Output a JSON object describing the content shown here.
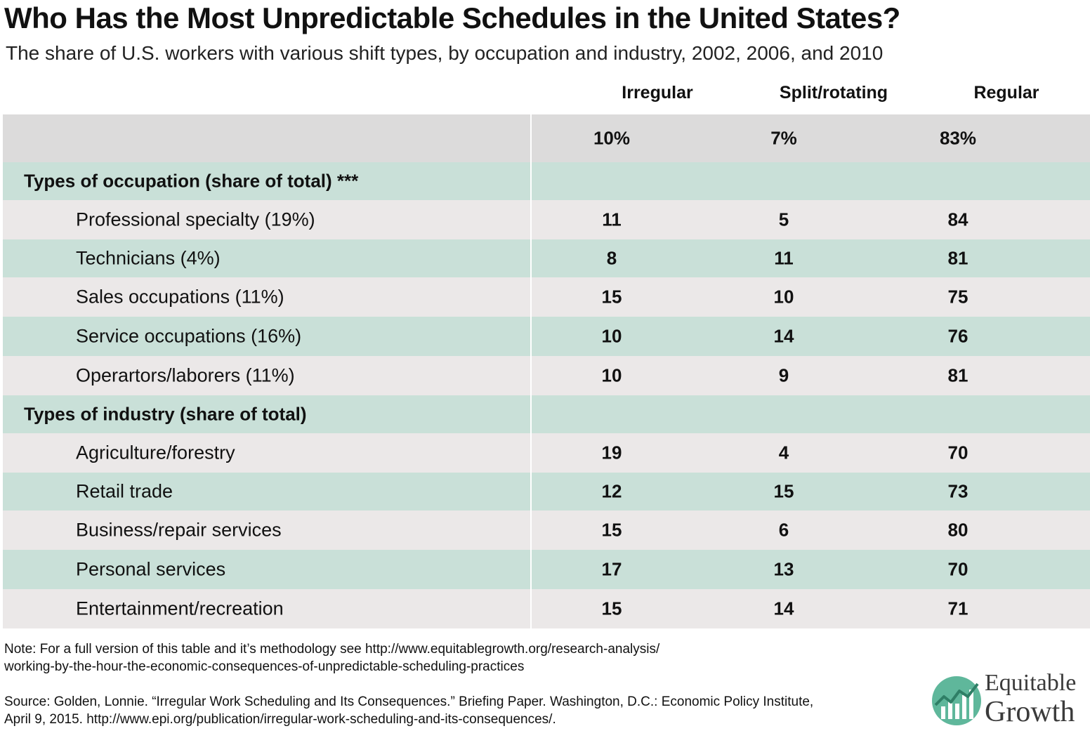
{
  "title": "Who Has the Most Unpredictable Schedules in the United States?",
  "subtitle": "The share of U.S. workers with various shift types, by occupation and industry, 2002, 2006, and 2010",
  "columns": [
    "Irregular",
    "Split/rotating",
    "Regular"
  ],
  "chart_data": {
    "type": "table",
    "columns": [
      "Irregular",
      "Split/rotating",
      "Regular"
    ],
    "total": {
      "label": "",
      "values": [
        "10%",
        "7%",
        "83%"
      ]
    },
    "sections": [
      {
        "label": "Types of occupation (share of total) ***",
        "rows": [
          {
            "label": "Professional specialty (19%)",
            "values": [
              "11",
              "5",
              "84"
            ]
          },
          {
            "label": "Technicians (4%)",
            "values": [
              "8",
              "11",
              "81"
            ]
          },
          {
            "label": "Sales occupations (11%)",
            "values": [
              "15",
              "10",
              "75"
            ]
          },
          {
            "label": "Service occupations (16%)",
            "values": [
              "10",
              "14",
              "76"
            ]
          },
          {
            "label": "Operartors/laborers (11%)",
            "values": [
              "10",
              "9",
              "81"
            ]
          }
        ]
      },
      {
        "label": "Types of industry (share of total)",
        "rows": [
          {
            "label": "Agriculture/forestry",
            "values": [
              "19",
              "4",
              "70"
            ]
          },
          {
            "label": "Retail trade",
            "values": [
              "12",
              "15",
              "73"
            ]
          },
          {
            "label": "Business/repair services",
            "values": [
              "15",
              "6",
              "80"
            ]
          },
          {
            "label": "Personal services",
            "values": [
              "17",
              "13",
              "70"
            ]
          },
          {
            "label": "Entertainment/recreation",
            "values": [
              "15",
              "14",
              "71"
            ]
          }
        ]
      }
    ]
  },
  "note_line1": "Note: For a full version of this table and it’s methodology see http://www.equitablegrowth.org/research-analysis/",
  "note_line2": "working-by-the-hour-the-economic-consequences-of-unpredictable-scheduling-practices",
  "source_line1": "Source: Golden, Lonnie. “Irregular Work Scheduling and Its Consequences.” Briefing Paper. Washington, D.C.: Economic Policy Institute,",
  "source_line2": "April 9, 2015. http://www.epi.org/publication/irregular-work-scheduling-and-its-consequences/.",
  "logo": {
    "line1": "Equitable",
    "line2": "Growth",
    "icon": "equitable-growth-logo-icon",
    "color": "#5fb79b"
  },
  "colors": {
    "row_gray": "#ebe8e8",
    "row_green": "#c9e0d8",
    "total_row": "#dcdbdb"
  }
}
